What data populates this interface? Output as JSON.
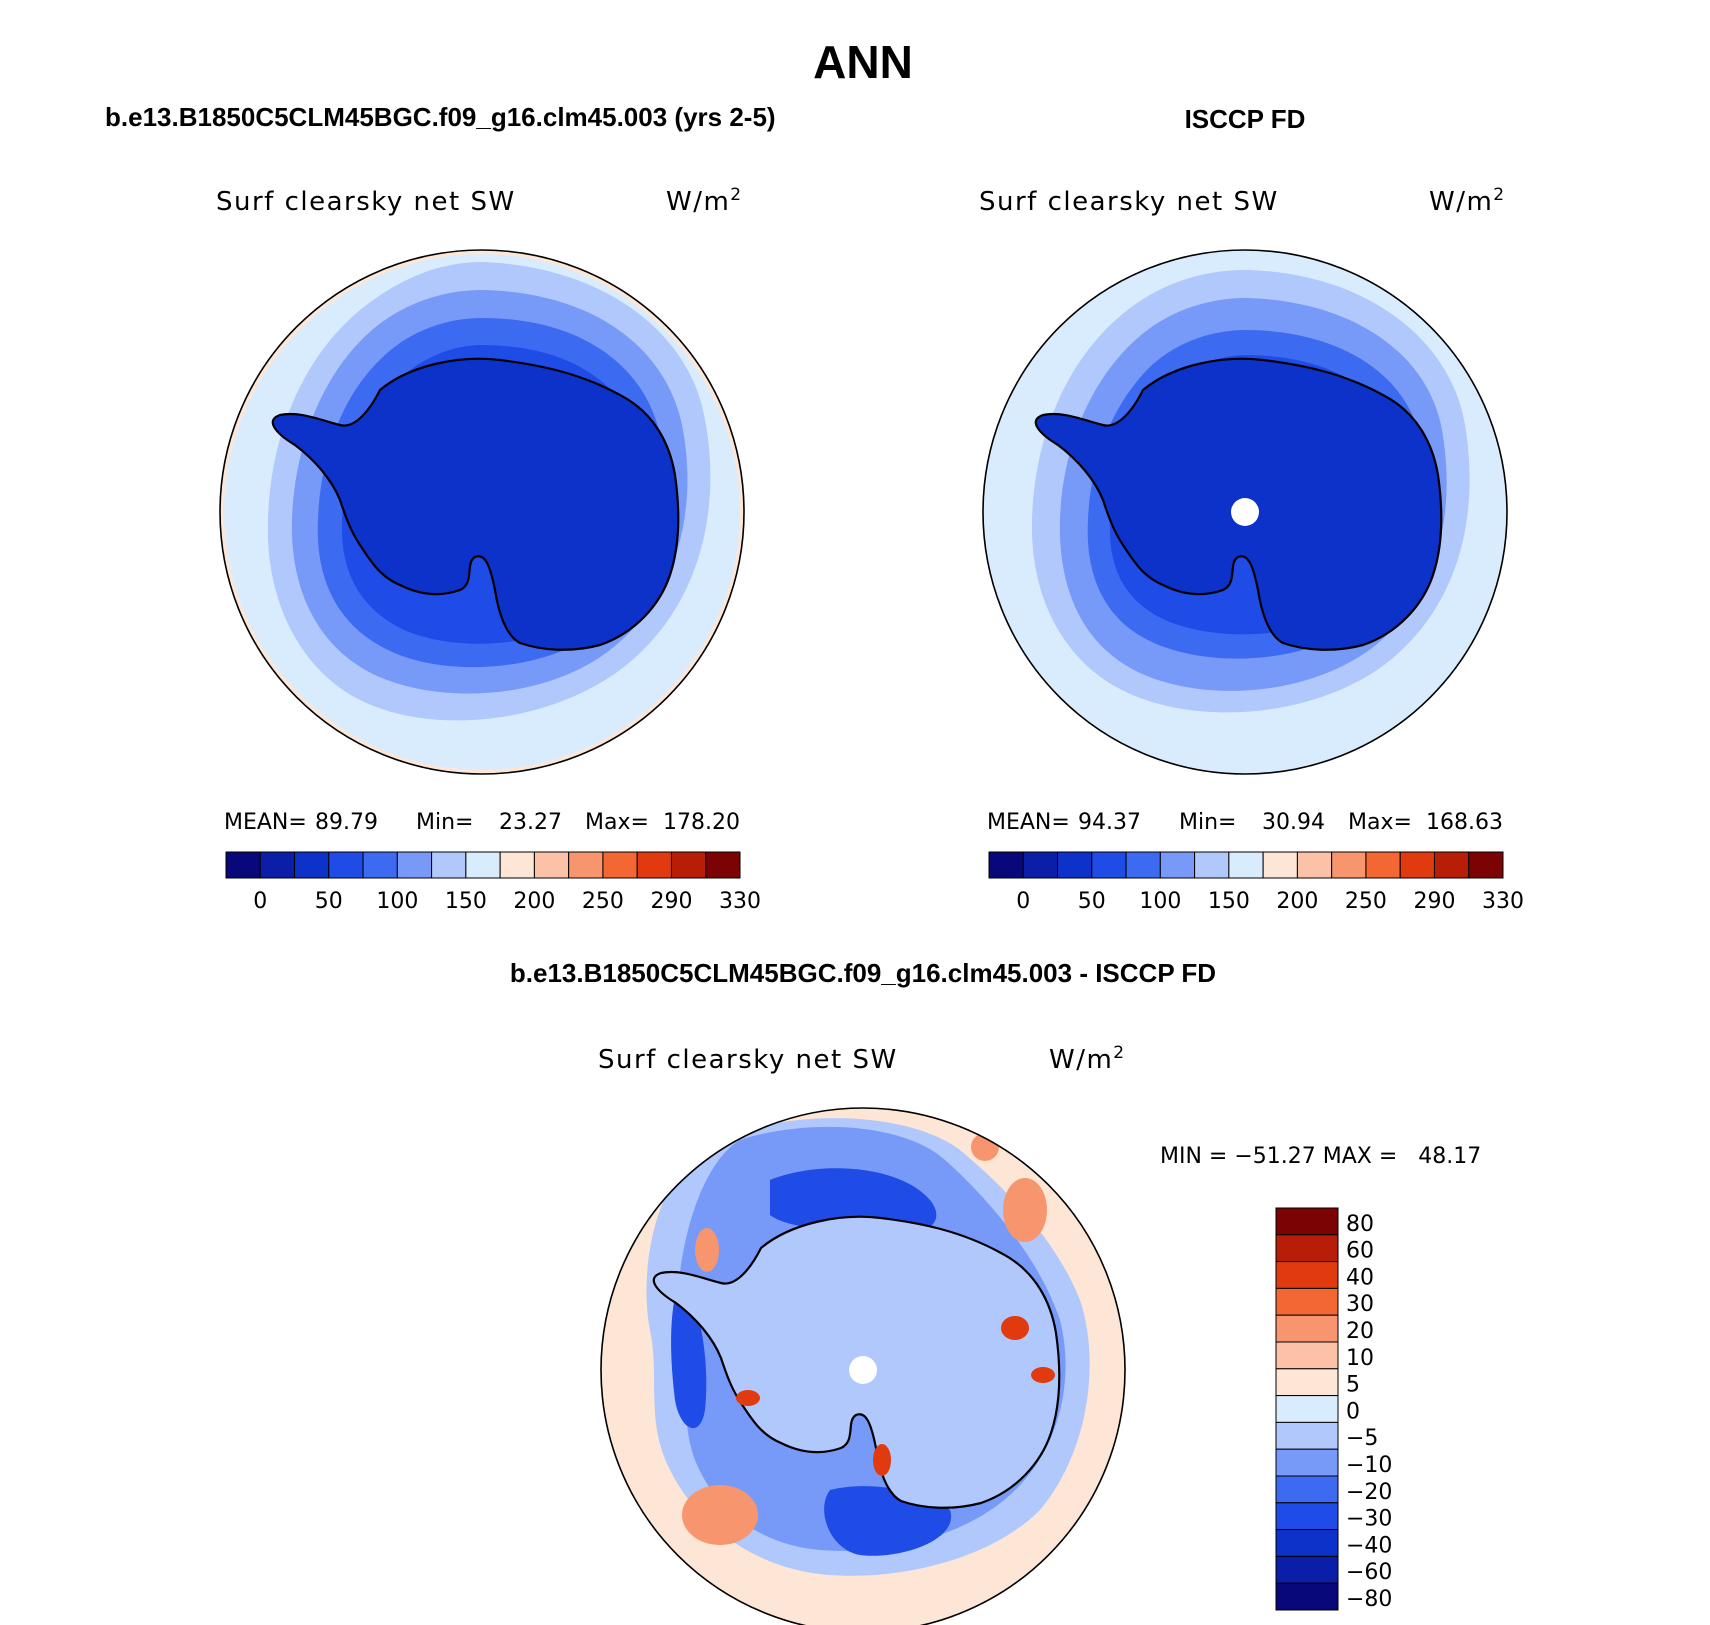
{
  "title": "ANN",
  "panels": [
    {
      "case_title": "b.e13.B1850C5CLM45BGC.f09_g16.clm45.003 (yrs 2-5)",
      "variable": "Surf clearsky net SW",
      "units": "W/m",
      "units_exp": "2",
      "stats": {
        "mean_label": "MEAN=",
        "mean": "89.79",
        "min_label": "Min=",
        "min": "23.27",
        "max_label": "Max=",
        "max": "178.20"
      },
      "colorbar": {
        "labels": [
          "0",
          "50",
          "100",
          "150",
          "200",
          "250",
          "290",
          "330"
        ],
        "colors": [
          "#08087a",
          "#0a1ea8",
          "#0c32c9",
          "#1f4be6",
          "#3c6bf2",
          "#7799f7",
          "#b0c8fb",
          "#d9ecfd",
          "#fde6d6",
          "#fbc2a8",
          "#f7966e",
          "#f36832",
          "#e13a0e",
          "#b81d08",
          "#7c0303"
        ]
      }
    },
    {
      "case_title": "ISCCP FD",
      "variable": "Surf clearsky net SW",
      "units": "W/m",
      "units_exp": "2",
      "stats": {
        "mean_label": "MEAN=",
        "mean": "94.37",
        "min_label": "Min=",
        "min": "30.94",
        "max_label": "Max=",
        "max": "168.63"
      },
      "colorbar": {
        "labels": [
          "0",
          "50",
          "100",
          "150",
          "200",
          "250",
          "290",
          "330"
        ],
        "colors": [
          "#08087a",
          "#0a1ea8",
          "#0c32c9",
          "#1f4be6",
          "#3c6bf2",
          "#7799f7",
          "#b0c8fb",
          "#d9ecfd",
          "#fde6d6",
          "#fbc2a8",
          "#f7966e",
          "#f36832",
          "#e13a0e",
          "#b81d08",
          "#7c0303"
        ]
      }
    },
    {
      "case_title": "b.e13.B1850C5CLM45BGC.f09_g16.clm45.003 - ISCCP FD",
      "variable": "Surf clearsky net SW",
      "units": "W/m",
      "units_exp": "2",
      "stats_text": "MIN = −51.27 MAX =   48.17",
      "colorbar": {
        "labels": [
          "80",
          "60",
          "40",
          "30",
          "20",
          "10",
          "5",
          "0",
          "−5",
          "−10",
          "−20",
          "−30",
          "−40",
          "−60",
          "−80"
        ],
        "colors": [
          "#7c0303",
          "#b81d08",
          "#e13a0e",
          "#f36832",
          "#f7966e",
          "#fbc2a8",
          "#fde6d6",
          "#d9ecfd",
          "#b0c8fb",
          "#7799f7",
          "#3c6bf2",
          "#1f4be6",
          "#0c32c9",
          "#0a1ea8",
          "#08087a"
        ]
      }
    }
  ],
  "map_colors": {
    "ocean_outer": "#d9ecfd",
    "ring1": "#b0c8fb",
    "ring2": "#7799f7",
    "ring3": "#3c6bf2",
    "ring4": "#1f4be6",
    "continent": "#0c32c9",
    "diff_background": "#fde6d6",
    "diff_light_blue": "#b0c8fb",
    "diff_mid_blue": "#7799f7",
    "diff_strong_blue": "#1f4be6",
    "diff_deep_blue": "#0c32c9",
    "diff_salmon": "#f7966e",
    "diff_red": "#e13a0e",
    "coast": "#000000"
  }
}
